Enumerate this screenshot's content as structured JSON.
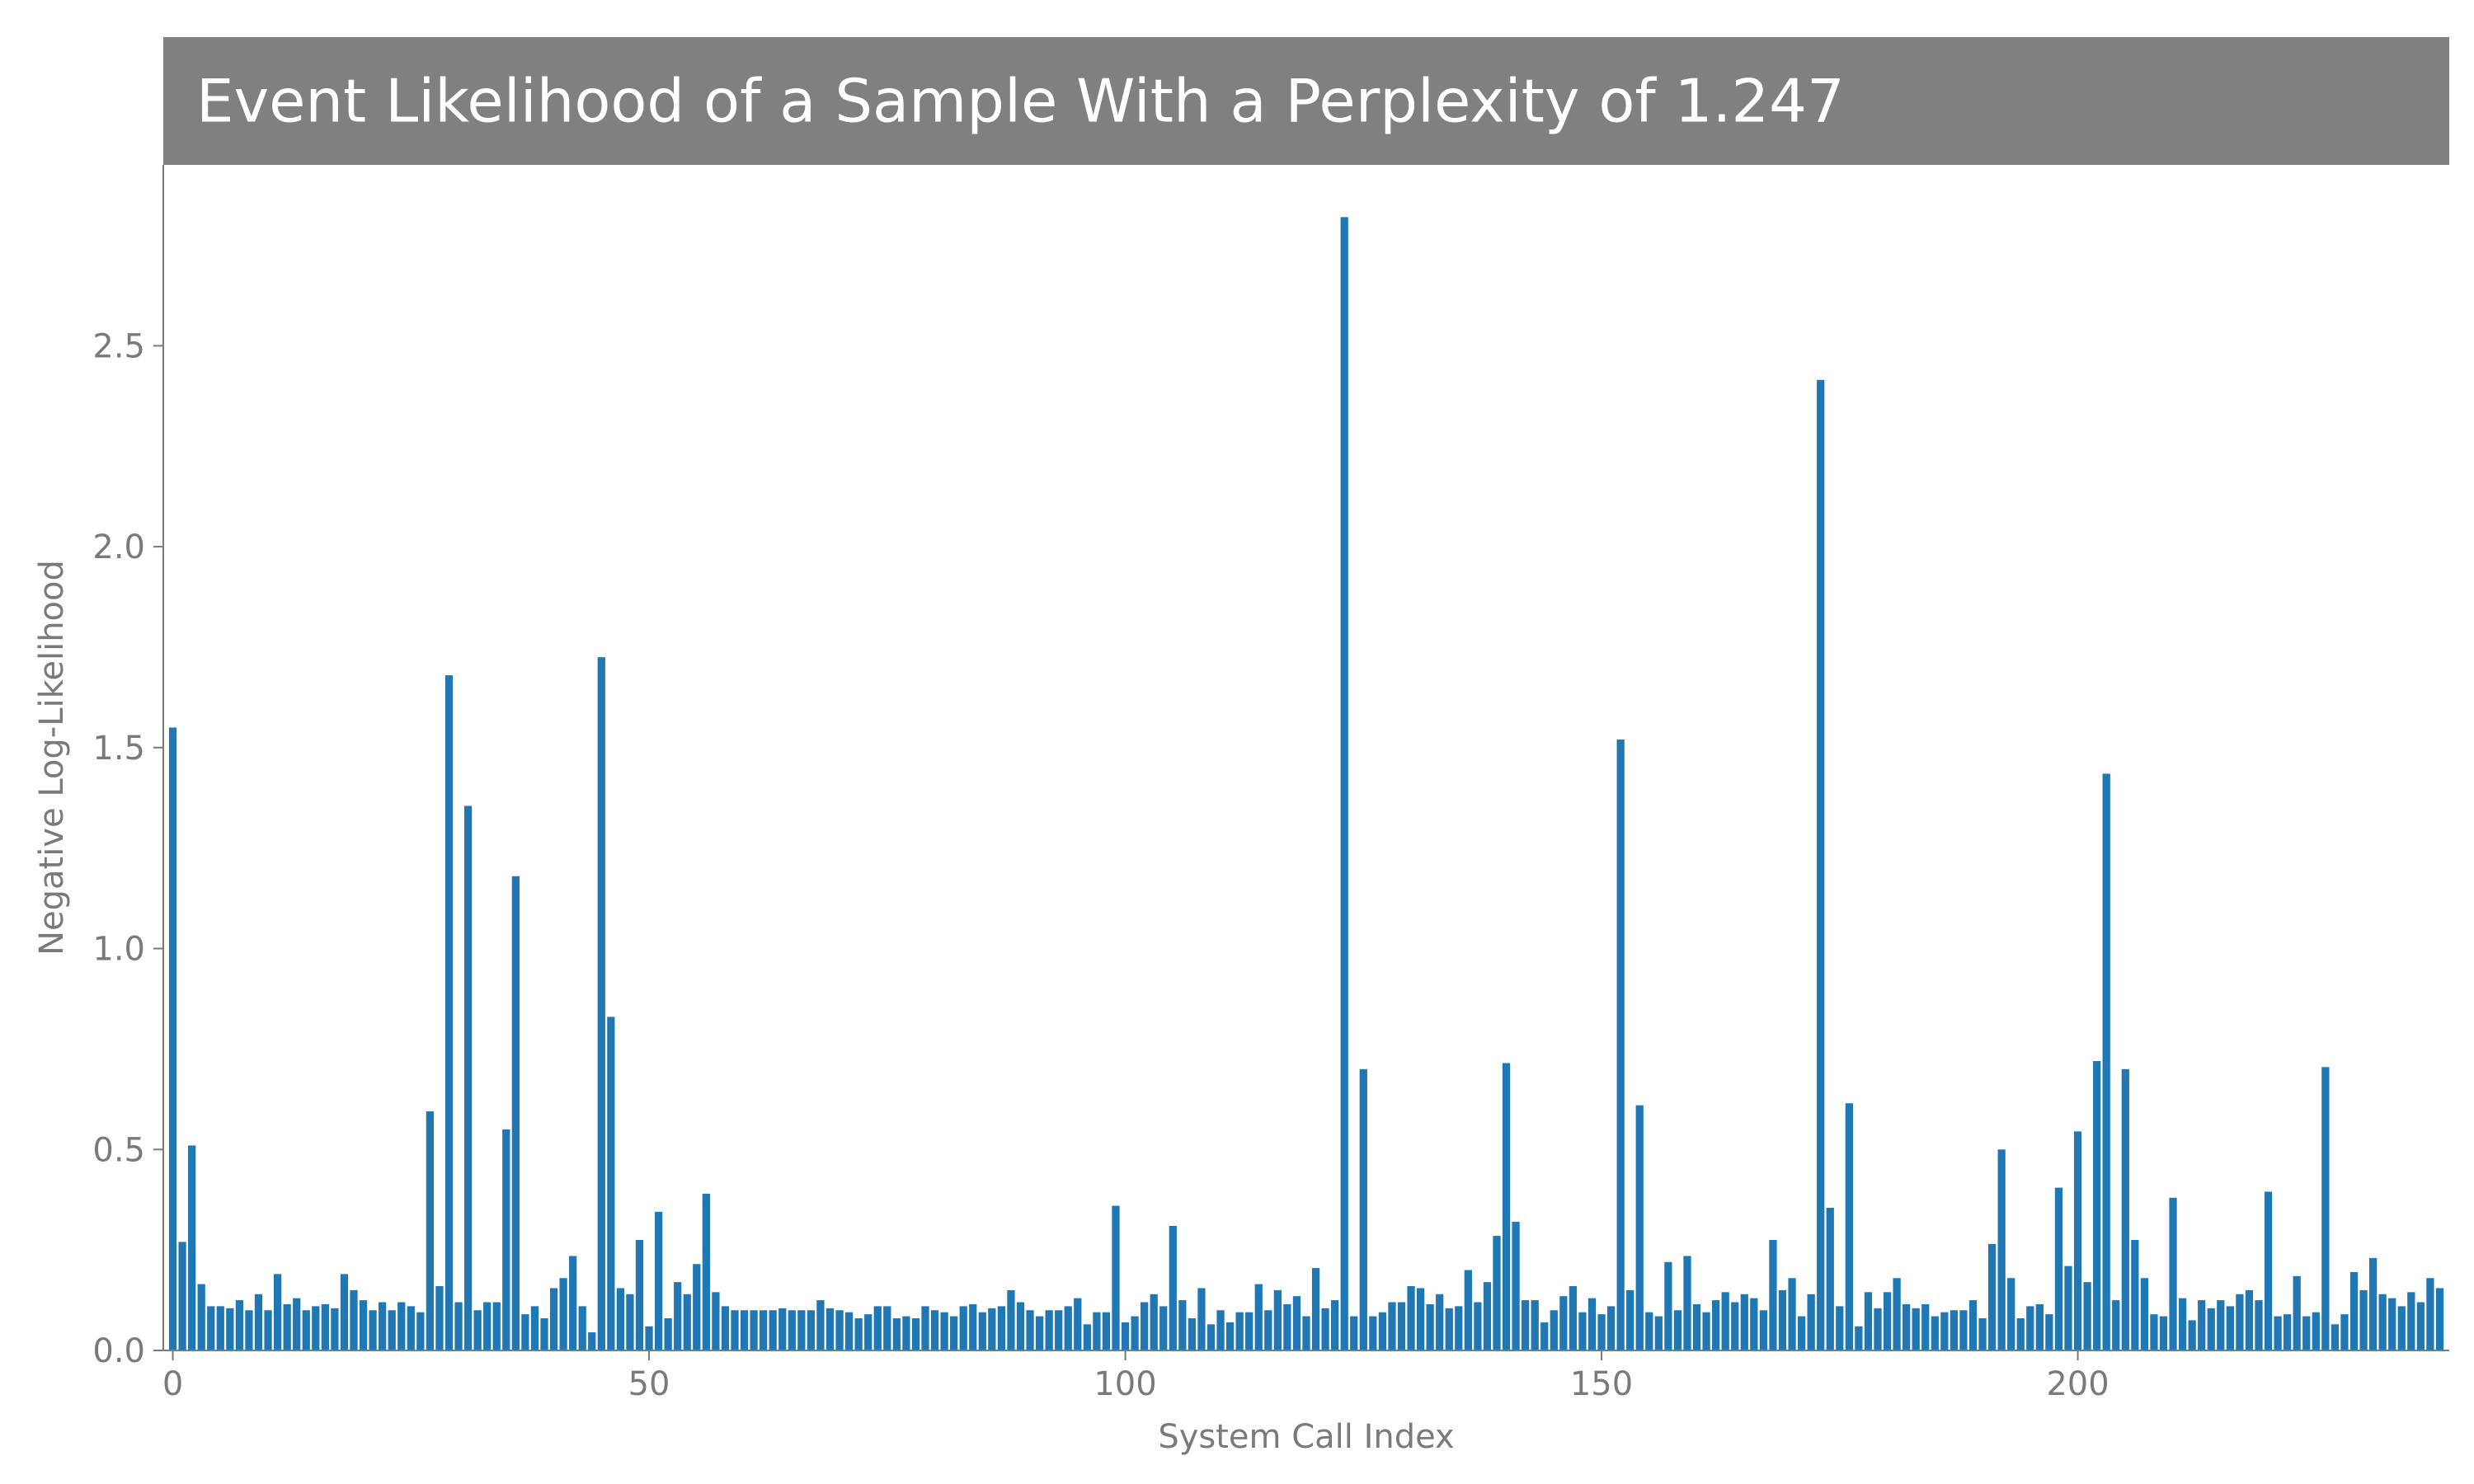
{
  "colors": {
    "bar": "#1f77b4",
    "title_bg": "#808080",
    "title_text": "#ffffff",
    "axis": "#7a7a7a",
    "background": "#ffffff"
  },
  "chart_data": {
    "type": "bar",
    "title": "Event Likelihood of a Sample With a Perplexity of 1.247",
    "xlabel": "System Call Index",
    "ylabel": "Negative Log-Likelihood",
    "xlim": [
      -1,
      239
    ],
    "ylim": [
      0,
      2.95
    ],
    "xticks": [
      0,
      50,
      100,
      150,
      200
    ],
    "xtick_labels": [
      "0",
      "50",
      "100",
      "150",
      "200"
    ],
    "yticks": [
      0,
      0.5,
      1.0,
      1.5,
      2.0,
      2.5
    ],
    "ytick_labels": [
      "0.0",
      "0.5",
      "1.0",
      "1.5",
      "2.0",
      "2.5"
    ],
    "grid": false,
    "x_start": 0,
    "values": [
      1.55,
      0.27,
      0.51,
      0.165,
      0.11,
      0.11,
      0.105,
      0.125,
      0.1,
      0.14,
      0.1,
      0.19,
      0.115,
      0.13,
      0.1,
      0.11,
      0.115,
      0.105,
      0.19,
      0.15,
      0.125,
      0.1,
      0.12,
      0.1,
      0.12,
      0.11,
      0.095,
      0.595,
      0.16,
      1.68,
      0.12,
      1.355,
      0.1,
      0.12,
      0.12,
      0.55,
      1.18,
      0.09,
      0.11,
      0.08,
      0.155,
      0.18,
      0.235,
      0.11,
      0.045,
      1.725,
      0.83,
      0.155,
      0.14,
      0.275,
      0.06,
      0.345,
      0.08,
      0.17,
      0.14,
      0.215,
      0.39,
      0.145,
      0.11,
      0.1,
      0.1,
      0.1,
      0.1,
      0.1,
      0.105,
      0.1,
      0.1,
      0.1,
      0.125,
      0.105,
      0.1,
      0.095,
      0.08,
      0.09,
      0.11,
      0.11,
      0.08,
      0.085,
      0.08,
      0.11,
      0.1,
      0.095,
      0.085,
      0.11,
      0.115,
      0.095,
      0.105,
      0.11,
      0.15,
      0.12,
      0.1,
      0.085,
      0.1,
      0.1,
      0.11,
      0.13,
      0.065,
      0.095,
      0.095,
      0.36,
      0.07,
      0.085,
      0.12,
      0.14,
      0.11,
      0.31,
      0.125,
      0.08,
      0.155,
      0.065,
      0.1,
      0.07,
      0.095,
      0.095,
      0.165,
      0.1,
      0.15,
      0.115,
      0.135,
      0.085,
      0.205,
      0.105,
      0.125,
      2.82,
      0.085,
      0.7,
      0.085,
      0.095,
      0.12,
      0.12,
      0.16,
      0.155,
      0.115,
      0.14,
      0.105,
      0.11,
      0.2,
      0.12,
      0.17,
      0.285,
      0.715,
      0.32,
      0.125,
      0.125,
      0.07,
      0.1,
      0.135,
      0.16,
      0.095,
      0.13,
      0.09,
      0.11,
      1.52,
      0.15,
      0.61,
      0.095,
      0.085,
      0.22,
      0.1,
      0.235,
      0.115,
      0.095,
      0.125,
      0.145,
      0.12,
      0.14,
      0.13,
      0.1,
      0.275,
      0.15,
      0.18,
      0.085,
      0.14,
      2.415,
      0.355,
      0.11,
      0.615,
      0.06,
      0.145,
      0.105,
      0.145,
      0.18,
      0.115,
      0.105,
      0.115,
      0.085,
      0.095,
      0.1,
      0.1,
      0.125,
      0.08,
      0.265,
      0.5,
      0.18,
      0.08,
      0.11,
      0.115,
      0.09,
      0.405,
      0.21,
      0.545,
      0.17,
      0.72,
      1.435,
      0.125,
      0.7,
      0.275,
      0.18,
      0.09,
      0.085,
      0.38,
      0.13,
      0.075,
      0.125,
      0.105,
      0.125,
      0.11,
      0.14,
      0.15,
      0.125,
      0.395,
      0.085,
      0.09,
      0.185,
      0.085,
      0.095,
      0.705,
      0.065,
      0.09,
      0.195,
      0.15,
      0.23,
      0.14,
      0.13,
      0.11,
      0.145,
      0.12,
      0.18,
      0.155
    ]
  }
}
